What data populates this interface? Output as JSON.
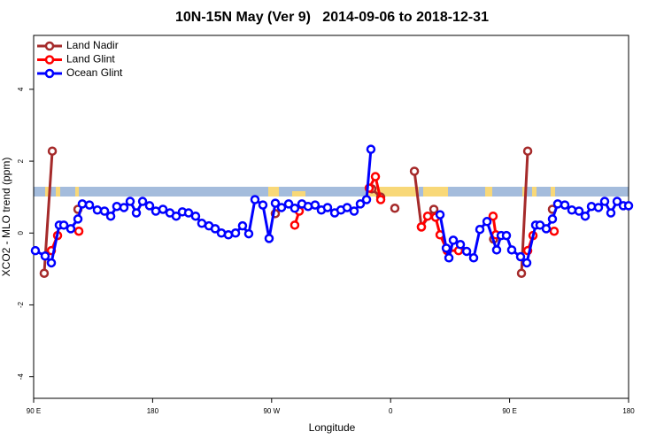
{
  "chart_data": {
    "type": "line",
    "title": "10N-15N May (Ver 9)   2014-09-06 to 2018-12-31",
    "x_label": "Longitude",
    "y_label": "XCO2 - MLO trend (ppm)",
    "xlim": [
      90,
      540
    ],
    "xticks": [
      {
        "value": 90,
        "label": "90 E"
      },
      180,
      {
        "value": 270,
        "label": "90 W"
      },
      {
        "value": 360,
        "label": "0"
      },
      {
        "value": 450,
        "label": "90 E"
      },
      {
        "value": 540,
        "label": "180"
      }
    ],
    "ylim": [
      -4.6,
      5.5
    ],
    "yticks": [
      -4,
      -2,
      0,
      2,
      4
    ],
    "legend": "top-left",
    "series": [
      {
        "name": "Land Nadir",
        "color": "#a52a2a",
        "x": [
          98.0,
          104.1,
          null,
          123.5,
          null,
          272.8,
          null,
          345.8,
          352.5,
          null,
          363.2,
          null,
          378.0,
          383.3,
          392.7,
          null,
          437.9,
          null,
          459.0,
          463.7,
          null,
          482.4
        ],
        "values": [
          -1.12,
          2.28,
          null,
          0.66,
          null,
          0.54,
          null,
          1.23,
          1.0,
          null,
          0.69,
          null,
          1.72,
          0.17,
          0.66,
          null,
          -0.17,
          null,
          -1.12,
          2.28,
          null,
          0.66
        ]
      },
      {
        "name": "Land Glint",
        "color": "#ff0000",
        "x": [
          103.4,
          108.1,
          null,
          124.2,
          null,
          287.5,
          290.9,
          null,
          343.8,
          348.5,
          352.5,
          null,
          383.3,
          388.0,
          394.0,
          397.4,
          402.8,
          411.4,
          null,
          437.5,
          439.6,
          null,
          463.7,
          467.7,
          null,
          483.7
        ],
        "values": [
          -0.49,
          -0.07,
          null,
          0.05,
          null,
          0.22,
          0.61,
          null,
          1.25,
          1.57,
          0.93,
          null,
          0.17,
          0.47,
          0.44,
          -0.05,
          -0.49,
          -0.49,
          null,
          0.47,
          -0.05,
          null,
          -0.49,
          -0.07,
          null,
          0.05
        ]
      },
      {
        "name": "Ocean Glint",
        "color": "#0000ff",
        "x": [
          91.3,
          98.7,
          103.4,
          109.4,
          112.8,
          118.1,
          123.5,
          126.8,
          132.2,
          138.2,
          143.6,
          148.3,
          152.9,
          158.3,
          163.0,
          167.7,
          172.4,
          177.7,
          182.4,
          187.8,
          193.1,
          197.8,
          202.5,
          207.2,
          212.5,
          217.2,
          222.6,
          227.3,
          232.0,
          237.3,
          242.7,
          248.0,
          252.7,
          257.4,
          263.4,
          268.1,
          272.8,
          277.5,
          282.9,
          287.5,
          292.9,
          297.6,
          302.9,
          307.6,
          312.3,
          317.7,
          322.4,
          327.1,
          332.4,
          337.1,
          341.8,
          345.1,
          null,
          397.4,
          402.1,
          404.1,
          407.4,
          412.8,
          417.5,
          422.8,
          427.5,
          432.9,
          440.2,
          443.6,
          447.6,
          451.6,
          458.3,
          463.0,
          469.7,
          473.0,
          477.7,
          482.4,
          486.4,
          491.8,
          497.1,
          502.5,
          507.2,
          511.9,
          517.2,
          521.9,
          526.6,
          531.3,
          536.0,
          540.0
        ],
        "values": [
          -0.49,
          -0.64,
          -0.83,
          0.22,
          0.22,
          0.12,
          0.39,
          0.81,
          0.78,
          0.64,
          0.61,
          0.47,
          0.74,
          0.71,
          0.88,
          0.56,
          0.88,
          0.76,
          0.61,
          0.66,
          0.56,
          0.47,
          0.59,
          0.56,
          0.47,
          0.27,
          0.2,
          0.12,
          0,
          -0.05,
          0,
          0.2,
          -0.02,
          0.93,
          0.78,
          -0.15,
          0.83,
          0.71,
          0.81,
          0.69,
          0.81,
          0.74,
          0.78,
          0.64,
          0.71,
          0.56,
          0.64,
          0.71,
          0.61,
          0.81,
          0.93,
          2.33,
          null,
          0.51,
          -0.42,
          -0.69,
          -0.2,
          -0.32,
          -0.51,
          -0.69,
          0.1,
          0.32,
          -0.47,
          -0.07,
          -0.07,
          -0.47,
          -0.66,
          -0.83,
          0.22,
          0.22,
          0.12,
          0.39,
          0.81,
          0.78,
          0.64,
          0.61,
          0.47,
          0.74,
          0.71,
          0.88,
          0.56,
          0.88,
          0.76,
          0.76
        ]
      }
    ]
  }
}
